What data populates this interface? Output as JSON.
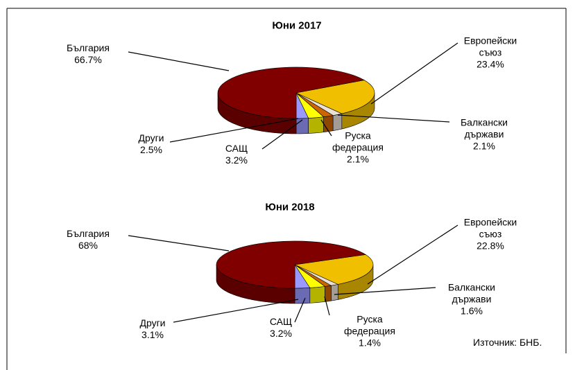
{
  "chart_data": [
    {
      "type": "pie",
      "title": "Юни 2017",
      "categories": [
        "България",
        "Европейски съюз",
        "Балкански държави",
        "Руска федерация",
        "САЩ",
        "Други"
      ],
      "values": [
        66.7,
        23.4,
        2.1,
        2.1,
        3.2,
        2.5
      ],
      "value_labels": [
        "66.7%",
        "23.4%",
        "2.1%",
        "2.1%",
        "3.2%",
        "2.5%"
      ],
      "colors": [
        "#800000",
        "#f0c000",
        "#e9e0d6",
        "#cc6600",
        "#ffff00",
        "#9999ff"
      ]
    },
    {
      "type": "pie",
      "title": "Юни 2018",
      "categories": [
        "България",
        "Европейски съюз",
        "Балкански държави",
        "Руска федерация",
        "САЩ",
        "Други"
      ],
      "values": [
        68,
        22.8,
        1.6,
        1.4,
        3.2,
        3.1
      ],
      "value_labels": [
        "68%",
        "22.8%",
        "1.6%",
        "1.4%",
        "3.2%",
        "3.1%"
      ],
      "colors": [
        "#800000",
        "#f0c000",
        "#e9e0d6",
        "#cc6600",
        "#ffff00",
        "#9999ff"
      ]
    }
  ],
  "source": "Източник: БНБ."
}
